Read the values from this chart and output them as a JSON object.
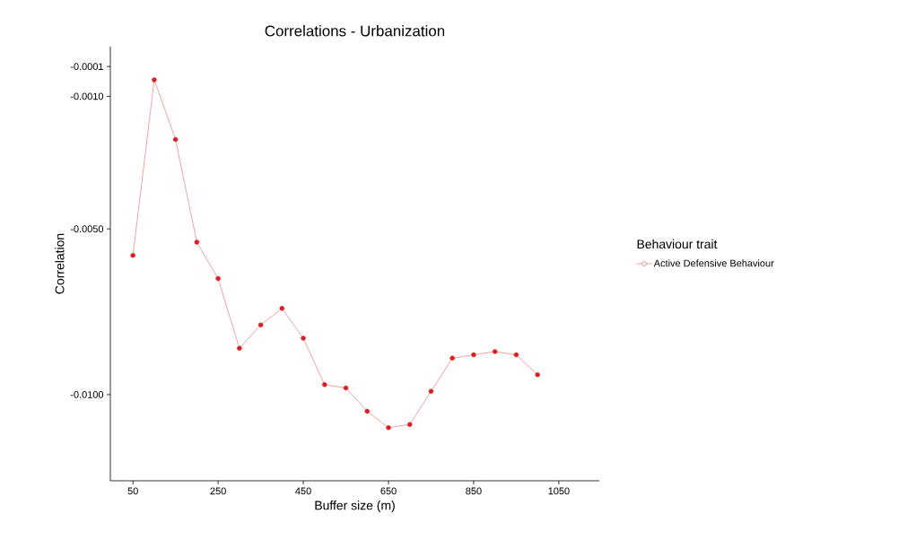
{
  "chart_data": {
    "type": "line",
    "title": "Correlations - Urbanization",
    "xlabel": "Buffer size (m)",
    "ylabel": "Correlation",
    "legend_title": "Behaviour trait",
    "x": [
      50,
      100,
      150,
      200,
      250,
      300,
      350,
      400,
      450,
      500,
      550,
      600,
      650,
      700,
      750,
      800,
      850,
      900,
      950,
      1000
    ],
    "series": [
      {
        "name": "Active Defensive Behaviour",
        "color": "#e41a1c",
        "values": [
          -0.0058,
          -0.0005,
          -0.0023,
          -0.0054,
          -0.0065,
          -0.0086,
          -0.0079,
          -0.0074,
          -0.0083,
          -0.0097,
          -0.0098,
          -0.0105,
          -0.011,
          -0.0109,
          -0.0099,
          -0.0089,
          -0.0088,
          -0.0087,
          -0.0088,
          -0.0094
        ]
      }
    ],
    "xlim": [
      -3,
      1145
    ],
    "ylim": [
      -0.0126,
      0.0005
    ],
    "xticks": [
      50,
      250,
      450,
      650,
      850,
      1050
    ],
    "yticks": [
      {
        "value": -0.0001,
        "label": "-0.0001"
      },
      {
        "value": -0.001,
        "label": "-0.0010"
      },
      {
        "value": -0.005,
        "label": "-0.0050"
      },
      {
        "value": -0.01,
        "label": "-0.0100"
      }
    ],
    "grid": false,
    "legend": "right",
    "marker": "circle",
    "line_style": "solid"
  }
}
